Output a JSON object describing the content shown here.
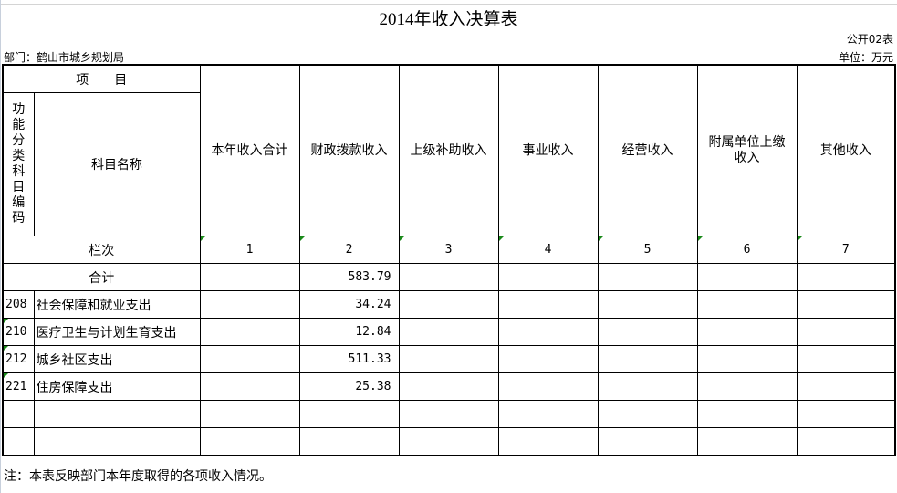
{
  "title": "2014年收入决算表",
  "form_no": "公开02表",
  "department": "部门：鹤山市城乡规划局",
  "unit": "单位：万元",
  "header": {
    "item": "项　　目",
    "code_label": "功能分类科目编码",
    "name_label": "科目名称",
    "columns": [
      "本年收入合计",
      "财政拨款收入",
      "上级补助收入",
      "事业收入",
      "经营收入",
      "附属单位上缴收入",
      "其他收入"
    ]
  },
  "column_index_label": "栏次",
  "column_indexes": [
    "1",
    "2",
    "3",
    "4",
    "5",
    "6",
    "7"
  ],
  "total": {
    "label": "合计",
    "values": [
      "",
      "583.79",
      "",
      "",
      "",
      "",
      ""
    ]
  },
  "rows": [
    {
      "code": "208",
      "name": "社会保障和就业支出",
      "values": [
        "",
        "34.24",
        "",
        "",
        "",
        "",
        ""
      ]
    },
    {
      "code": "210",
      "name": "医疗卫生与计划生育支出",
      "values": [
        "",
        "12.84",
        "",
        "",
        "",
        "",
        ""
      ]
    },
    {
      "code": "212",
      "name": "城乡社区支出",
      "values": [
        "",
        "511.33",
        "",
        "",
        "",
        "",
        ""
      ]
    },
    {
      "code": "221",
      "name": "住房保障支出",
      "values": [
        "",
        "25.38",
        "",
        "",
        "",
        "",
        ""
      ]
    },
    {
      "code": "",
      "name": "",
      "values": [
        "",
        "",
        "",
        "",
        "",
        "",
        ""
      ]
    },
    {
      "code": "",
      "name": "",
      "values": [
        "",
        "",
        "",
        "",
        "",
        "",
        ""
      ]
    }
  ],
  "note": "注：本表反映部门本年度取得的各项收入情况。"
}
